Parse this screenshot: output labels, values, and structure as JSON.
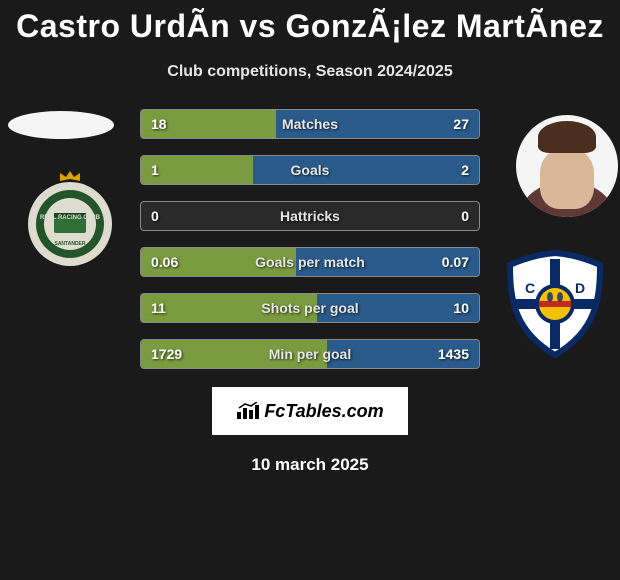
{
  "title": "Castro UrdÃ­n vs GonzÃ¡lez MartÃ­nez",
  "subtitle": "Club competitions, Season 2024/2025",
  "date": "10 march 2025",
  "branding_text": "FcTables.com",
  "colors": {
    "left_bar": "#7a9b3f",
    "right_bar": "#2a5a8a",
    "row_bg": "#2a2a2a",
    "row_border": "#888888"
  },
  "stats": [
    {
      "label": "Matches",
      "left_val": "18",
      "right_val": "27",
      "left_pct": 40,
      "right_pct": 60
    },
    {
      "label": "Goals",
      "left_val": "1",
      "right_val": "2",
      "left_pct": 33,
      "right_pct": 67
    },
    {
      "label": "Hattricks",
      "left_val": "0",
      "right_val": "0",
      "left_pct": 0,
      "right_pct": 0
    },
    {
      "label": "Goals per match",
      "left_val": "0.06",
      "right_val": "0.07",
      "left_pct": 46,
      "right_pct": 54
    },
    {
      "label": "Shots per goal",
      "left_val": "11",
      "right_val": "10",
      "left_pct": 52,
      "right_pct": 48
    },
    {
      "label": "Min per goal",
      "left_val": "1729",
      "right_val": "1435",
      "left_pct": 55,
      "right_pct": 45
    }
  ],
  "crest_left": {
    "ring_outer": "#dedccf",
    "ring_inner": "#2d6b33",
    "top_crown": "#d9a300",
    "text": "REAL RACING CLUB",
    "subtext": "SANTANDER"
  },
  "crest_right": {
    "shield_fill": "#ffffff",
    "shield_border": "#0a2a66",
    "cross": "#0a2a66",
    "center_globe": "#f2c200",
    "center_band": "#c62828"
  }
}
